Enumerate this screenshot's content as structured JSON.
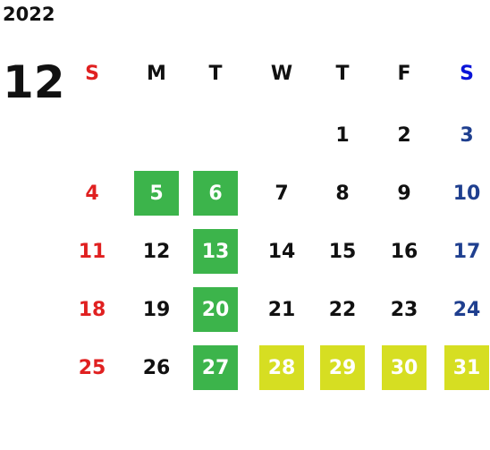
{
  "year": "2022",
  "month": "12",
  "weekdays": [
    "S",
    "M",
    "T",
    "W",
    "T",
    "F",
    "S"
  ],
  "weekday_colors": [
    "#e02020",
    "#111111",
    "#111111",
    "#111111",
    "#111111",
    "#111111",
    "#0a14d8"
  ],
  "day_colors": [
    "#e02020",
    "#111111",
    "#111111",
    "#111111",
    "#111111",
    "#111111",
    "#1f3f8f"
  ],
  "weeks": [
    [
      null,
      null,
      null,
      null,
      1,
      2,
      3
    ],
    [
      4,
      5,
      6,
      7,
      8,
      9,
      10
    ],
    [
      11,
      12,
      13,
      14,
      15,
      16,
      17
    ],
    [
      18,
      19,
      20,
      21,
      22,
      23,
      24
    ],
    [
      25,
      26,
      27,
      28,
      29,
      30,
      31
    ]
  ],
  "cell_fills": [
    [
      null,
      null,
      null,
      null,
      null,
      null,
      null
    ],
    [
      null,
      "#3cb44b",
      "#3cb44b",
      null,
      null,
      null,
      null
    ],
    [
      null,
      null,
      "#3cb44b",
      null,
      null,
      null,
      null
    ],
    [
      null,
      null,
      "#3cb44b",
      null,
      null,
      null,
      null
    ],
    [
      null,
      null,
      "#3cb44b",
      "#d6de22",
      "#d6de22",
      "#d6de22",
      "#d6de22"
    ]
  ]
}
